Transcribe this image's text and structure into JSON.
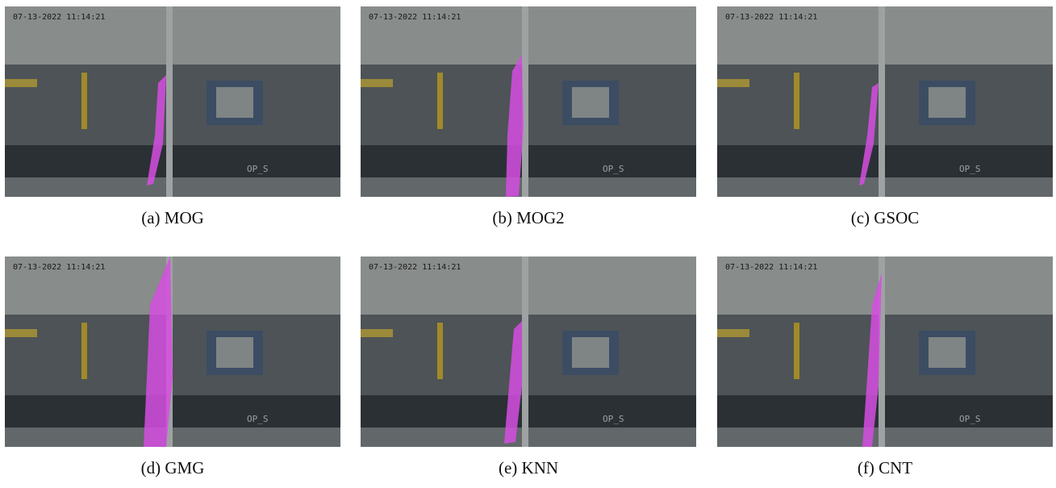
{
  "figure": {
    "panels": [
      {
        "caption": "(a) MOG",
        "timestamp": "07-13-2022 11:14:21",
        "overlay": "OP_S"
      },
      {
        "caption": "(b) MOG2",
        "timestamp": "07-13-2022 11:14:21",
        "overlay": "OP_S"
      },
      {
        "caption": "(c) GSOC",
        "timestamp": "07-13-2022 11:14:21",
        "overlay": "OP_S"
      },
      {
        "caption": "(d) GMG",
        "timestamp": "07-13-2022 11:14:21",
        "overlay": "OP_S"
      },
      {
        "caption": "(e) KNN",
        "timestamp": "07-13-2022 11:14:21",
        "overlay": "OP_S"
      },
      {
        "caption": "(f) CNT",
        "timestamp": "07-13-2022 11:14:21",
        "overlay": "OP_S"
      }
    ]
  }
}
